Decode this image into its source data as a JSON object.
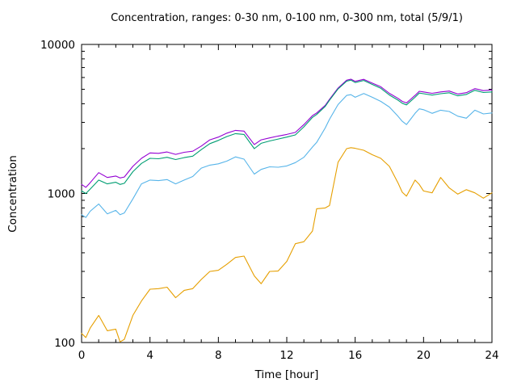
{
  "window": {
    "background": "#ffffff"
  },
  "chart_data": {
    "type": "line",
    "title": "Concentration, ranges: 0-30 nm, 0-100 nm, 0-300 nm, total (5/9/1)",
    "xlabel": "Time [hour]",
    "ylabel": "Concentration",
    "xlim": [
      0,
      24
    ],
    "ylim": [
      100,
      10000
    ],
    "y_scale": "log",
    "x_ticks_major": [
      0,
      4,
      8,
      12,
      16,
      20,
      24
    ],
    "x_minor_step": 1,
    "y_ticks_major": [
      100,
      1000,
      10000
    ],
    "y_minor_mantissas": [
      2,
      3,
      4,
      5,
      6,
      7,
      8,
      9
    ],
    "grid": false,
    "legend_position": "none",
    "frame_color": "#000000",
    "tick_style": "inward-mirrored",
    "x": [
      0,
      0.25,
      0.5,
      1,
      1.5,
      2,
      2.25,
      2.5,
      3,
      3.5,
      4,
      4.5,
      5,
      5.5,
      6,
      6.5,
      7,
      7.5,
      8,
      8.5,
      9,
      9.5,
      10.1,
      10.5,
      11,
      11.5,
      12,
      12.5,
      13,
      13.5,
      13.75,
      14.25,
      14.5,
      15,
      15.5,
      15.75,
      16,
      16.5,
      17,
      17.5,
      18,
      18.5,
      18.75,
      19,
      19.5,
      19.75,
      20,
      20.5,
      21,
      21.5,
      22,
      22.5,
      23,
      23.5,
      24
    ],
    "series": [
      {
        "name": "total",
        "color": "#9400d3",
        "values": [
          1150,
          1100,
          1180,
          1380,
          1280,
          1310,
          1270,
          1290,
          1520,
          1720,
          1870,
          1860,
          1900,
          1830,
          1890,
          1920,
          2080,
          2290,
          2390,
          2540,
          2650,
          2620,
          2130,
          2290,
          2360,
          2430,
          2490,
          2570,
          2900,
          3330,
          3470,
          3900,
          4280,
          5100,
          5750,
          5850,
          5650,
          5830,
          5500,
          5200,
          4700,
          4350,
          4150,
          4050,
          4550,
          4850,
          4800,
          4700,
          4800,
          4870,
          4650,
          4750,
          5050,
          4900,
          4950
        ]
      },
      {
        "name": "0-300 nm",
        "color": "#009e73",
        "values": [
          1040,
          1000,
          1070,
          1230,
          1160,
          1190,
          1150,
          1170,
          1400,
          1590,
          1720,
          1710,
          1750,
          1690,
          1740,
          1780,
          1970,
          2160,
          2270,
          2410,
          2520,
          2490,
          2000,
          2170,
          2250,
          2320,
          2390,
          2470,
          2800,
          3240,
          3390,
          3840,
          4220,
          5030,
          5670,
          5760,
          5550,
          5730,
          5390,
          5080,
          4580,
          4230,
          4030,
          3930,
          4420,
          4720,
          4670,
          4570,
          4670,
          4740,
          4520,
          4620,
          4920,
          4760,
          4800
        ]
      },
      {
        "name": "0-100 nm",
        "color": "#56b4e9",
        "values": [
          720,
          690,
          760,
          850,
          730,
          770,
          720,
          740,
          920,
          1160,
          1230,
          1220,
          1240,
          1160,
          1230,
          1300,
          1480,
          1550,
          1580,
          1650,
          1760,
          1700,
          1350,
          1450,
          1510,
          1500,
          1530,
          1610,
          1750,
          2050,
          2200,
          2750,
          3150,
          3950,
          4550,
          4600,
          4420,
          4680,
          4420,
          4150,
          3800,
          3300,
          3050,
          2900,
          3450,
          3700,
          3650,
          3450,
          3620,
          3550,
          3300,
          3200,
          3620,
          3420,
          3470
        ]
      },
      {
        "name": "0-30 nm",
        "color": "#e69f00",
        "values": [
          115,
          108,
          125,
          152,
          120,
          123,
          101,
          105,
          152,
          190,
          228,
          230,
          235,
          200,
          224,
          230,
          265,
          300,
          305,
          335,
          372,
          380,
          280,
          248,
          300,
          302,
          350,
          460,
          475,
          560,
          790,
          800,
          830,
          1620,
          2000,
          2030,
          2010,
          1950,
          1820,
          1720,
          1520,
          1180,
          1020,
          960,
          1230,
          1150,
          1040,
          1010,
          1280,
          1090,
          990,
          1060,
          1010,
          930,
          1010
        ]
      }
    ]
  }
}
